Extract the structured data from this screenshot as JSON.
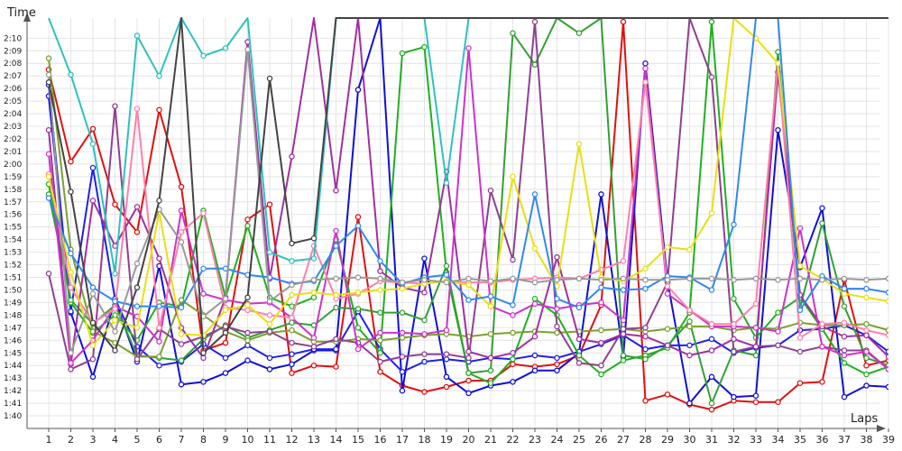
{
  "chart_data": {
    "type": "line",
    "title": "",
    "xlabel": "Laps",
    "ylabel": "Time",
    "x": [
      1,
      2,
      3,
      4,
      5,
      6,
      7,
      8,
      9,
      10,
      11,
      12,
      13,
      14,
      15,
      16,
      17,
      18,
      19,
      20,
      21,
      22,
      23,
      24,
      25,
      26,
      27,
      28,
      29,
      30,
      31,
      32,
      33,
      34,
      35,
      36,
      37,
      38,
      39
    ],
    "xlim": [
      0,
      40
    ],
    "ylim": [
      99,
      131.6
    ],
    "y_ticks": [
      {
        "v": 100,
        "label": "1:40"
      },
      {
        "v": 101,
        "label": "1:41"
      },
      {
        "v": 102,
        "label": "1:42"
      },
      {
        "v": 103,
        "label": "1:43"
      },
      {
        "v": 104,
        "label": "1:44"
      },
      {
        "v": 105,
        "label": "1:45"
      },
      {
        "v": 106,
        "label": "1:46"
      },
      {
        "v": 107,
        "label": "1:47"
      },
      {
        "v": 108,
        "label": "1:48"
      },
      {
        "v": 109,
        "label": "1:49"
      },
      {
        "v": 110,
        "label": "1:50"
      },
      {
        "v": 111,
        "label": "1:51"
      },
      {
        "v": 112,
        "label": "1:52"
      },
      {
        "v": 113,
        "label": "1:53"
      },
      {
        "v": 114,
        "label": "1:54"
      },
      {
        "v": 115,
        "label": "1:55"
      },
      {
        "v": 116,
        "label": "1:56"
      },
      {
        "v": 117,
        "label": "1:57"
      },
      {
        "v": 118,
        "label": "1:58"
      },
      {
        "v": 119,
        "label": "1:59"
      },
      {
        "v": 120,
        "label": "2:00"
      },
      {
        "v": 121,
        "label": "2:01"
      },
      {
        "v": 122,
        "label": "2:02"
      },
      {
        "v": 123,
        "label": "2:03"
      },
      {
        "v": 124,
        "label": "2:04"
      },
      {
        "v": 125,
        "label": "2:05"
      },
      {
        "v": 126,
        "label": "2:06"
      },
      {
        "v": 127,
        "label": "2:07"
      },
      {
        "v": 128,
        "label": "2:08"
      },
      {
        "v": 129,
        "label": "2:09"
      },
      {
        "v": 130,
        "label": "2:10"
      }
    ],
    "grid": true,
    "legend": "none",
    "series": [
      {
        "color": "#e01010",
        "values": [
          127.5,
          120.2,
          122.8,
          116.8,
          114.6,
          124.3,
          118.2,
          105.2,
          105.8,
          115.6,
          116.8,
          103.4,
          104.0,
          103.9,
          115.8,
          103.5,
          102.4,
          101.9,
          102.3,
          102.8,
          102.8,
          104.1,
          103.9,
          104.1,
          104.8,
          108.8,
          131.3,
          101.2,
          101.7,
          100.9,
          100.5,
          101.2,
          101.1,
          101.1,
          102.6,
          102.7,
          110.8,
          104.0,
          104.4
        ]
      },
      {
        "color": "#1010d8",
        "values": [
          125.4,
          108.2,
          103.1,
          109.2,
          104.3,
          111.9,
          102.5,
          102.7,
          103.4,
          104.4,
          103.7,
          104.1,
          105.2,
          105.2,
          125.9,
          131.6,
          102.0,
          112.5,
          103.1,
          101.8,
          102.4,
          102.7,
          103.6,
          103.6,
          105.0,
          117.6,
          104.7,
          128.0,
          110.7,
          101.0,
          103.1,
          101.5,
          101.6,
          122.7,
          111.8,
          116.5,
          101.5,
          102.4,
          102.3
        ]
      },
      {
        "color": "#2020e8",
        "values": [
          126.3,
          108.3,
          119.7,
          109.3,
          105.5,
          104.0,
          104.3,
          105.7,
          104.6,
          105.6,
          104.6,
          104.9,
          105.3,
          105.3,
          108.3,
          105.3,
          103.5,
          104.3,
          104.5,
          104.3,
          104.6,
          104.5,
          104.8,
          104.6,
          105.1,
          105.7,
          106.4,
          105.3,
          105.6,
          105.6,
          106.1,
          105.0,
          105.4,
          105.6,
          106.8,
          106.9,
          107.2,
          106.4,
          105.1
        ]
      },
      {
        "color": "#20b020",
        "values": [
          118.4,
          109.0,
          106.6,
          108.0,
          106.0,
          109.0,
          108.7,
          116.3,
          109.4,
          115.1,
          109.4,
          108.7,
          109.4,
          114.0,
          107.0,
          105.0,
          128.8,
          129.3,
          111.4,
          103.4,
          102.6,
          104.5,
          109.3,
          108.0,
          104.8,
          103.3,
          104.4,
          104.8,
          105.4,
          108.2,
          131.3,
          109.3,
          106.2,
          108.2,
          109.4,
          106.9,
          104.2,
          103.3,
          103.9
        ]
      },
      {
        "color": "#33a033",
        "values": [
          117.6,
          109.2,
          107.3,
          108.8,
          104.8,
          104.6,
          104.4,
          106.1,
          107.2,
          106.2,
          106.8,
          107.4,
          107.2,
          108.6,
          108.5,
          108.2,
          108.2,
          107.6,
          111.9,
          103.4,
          103.6,
          130.4,
          127.9,
          131.6,
          130.4,
          131.6,
          104.8,
          104.5,
          105.6,
          107.5,
          101.0,
          105.2,
          104.8,
          128.9,
          108.6,
          115.3,
          108.7,
          104.6,
          104.0
        ]
      },
      {
        "color": "#7aa030",
        "values": [
          128.4,
          113.2,
          106.7,
          105.8,
          104.7,
          104.7,
          109.2,
          108.0,
          106.7,
          106.0,
          106.6,
          106.8,
          105.9,
          105.9,
          106.1,
          106.0,
          106.2,
          106.4,
          106.5,
          106.3,
          106.5,
          106.6,
          106.7,
          106.6,
          106.7,
          106.8,
          106.9,
          106.7,
          106.9,
          107.1,
          107.1,
          106.8,
          107.0,
          106.9,
          107.4,
          107.2,
          107.2,
          107.3,
          106.8
        ]
      },
      {
        "color": "#904090",
        "values": [
          111.3,
          103.7,
          104.5,
          124.6,
          104.5,
          106.9,
          105.7,
          106.3,
          107.1,
          106.6,
          106.7,
          105.8,
          105.5,
          106.1,
          105.8,
          104.3,
          104.7,
          104.9,
          104.9,
          104.6,
          117.9,
          112.4,
          131.3,
          107.1,
          104.2,
          104.0,
          106.9,
          107.0,
          110.6,
          131.6,
          126.9,
          105.1,
          105.5,
          105.6,
          105.1,
          105.5,
          105.2,
          105.2,
          103.7
        ]
      },
      {
        "color": "#a030a0",
        "values": [
          122.7,
          104.1,
          117.1,
          113.5,
          116.6,
          112.5,
          107.0,
          104.6,
          109.4,
          129.7,
          110.9,
          120.6,
          131.6,
          117.9,
          131.6,
          111.5,
          110.2,
          109.8,
          119.4,
          105.1,
          104.6,
          105.0,
          106.3,
          112.6,
          106.1,
          105.8,
          106.5,
          106.3,
          105.6,
          104.8,
          105.2,
          106.1,
          105.5,
          127.3,
          109.6,
          107.1,
          106.3,
          106.4,
          104.7
        ]
      },
      {
        "color": "#cc33cc",
        "values": [
          120.8,
          104.2,
          106.0,
          108.7,
          107.9,
          105.9,
          116.3,
          109.7,
          109.2,
          108.9,
          109.0,
          107.8,
          106.2,
          114.7,
          105.3,
          106.6,
          106.6,
          106.5,
          106.8,
          129.2,
          108.7,
          108.0,
          108.9,
          108.5,
          108.8,
          109.0,
          107.6,
          127.6,
          109.7,
          108.4,
          107.1,
          107.1,
          107.0,
          106.7,
          114.9,
          105.5,
          104.8,
          105.1,
          103.7
        ]
      },
      {
        "color": "#ff80aa",
        "values": [
          119.2,
          110.2,
          107.4,
          108.5,
          124.4,
          107.0,
          114.6,
          116.1,
          108.6,
          108.4,
          108.0,
          107.8,
          113.5,
          109.3,
          109.7,
          110.7,
          110.6,
          110.5,
          110.7,
          110.6,
          110.6,
          110.8,
          110.9,
          111.0,
          110.9,
          111.6,
          112.3,
          126.5,
          110.3,
          108.4,
          107.3,
          107.3,
          108.9,
          128.0,
          106.2,
          107.3,
          107.4,
          106.8,
          106.4
        ]
      },
      {
        "color": "#e8e010",
        "values": [
          119.0,
          111.4,
          105.6,
          107.6,
          107.0,
          116.2,
          106.5,
          106.4,
          108.4,
          108.8,
          107.3,
          109.6,
          109.8,
          109.6,
          109.8,
          110.0,
          110.1,
          110.5,
          110.7,
          110.4,
          108.7,
          119.0,
          113.3,
          110.3,
          121.6,
          111.0,
          110.7,
          111.7,
          113.4,
          113.2,
          116.1,
          131.6,
          130.0,
          128.0,
          111.9,
          110.9,
          109.7,
          109.4,
          109.1
        ]
      },
      {
        "color": "#3388ee",
        "values": [
          117.3,
          112.9,
          110.2,
          109.1,
          108.7,
          108.7,
          108.6,
          111.7,
          111.7,
          111.2,
          111.0,
          110.5,
          110.7,
          113.5,
          115.1,
          112.3,
          110.5,
          111.0,
          111.2,
          109.2,
          109.5,
          108.8,
          117.6,
          109.3,
          108.6,
          110.2,
          110.0,
          110.1,
          111.1,
          111.0,
          110.0,
          115.2,
          131.6,
          131.6,
          108.4,
          111.1,
          110.1,
          110.1,
          109.8
        ]
      },
      {
        "color": "#30c0c0",
        "values": [
          131.6,
          127.1,
          121.6,
          111.3,
          130.2,
          127.0,
          131.6,
          128.6,
          129.2,
          131.6,
          113.0,
          112.3,
          112.5,
          131.6,
          131.6,
          131.6,
          131.6,
          131.6,
          118.5,
          131.6,
          131.6,
          131.6,
          131.6,
          131.6,
          131.6,
          131.6,
          131.6,
          131.6,
          131.6,
          131.6,
          131.6,
          131.6,
          131.6,
          131.6,
          131.6,
          131.6,
          131.6,
          131.6,
          131.6
        ]
      },
      {
        "color": "#999999",
        "values": [
          127.1,
          105.0,
          109.7,
          106.7,
          112.1,
          116.4,
          113.8,
          107.9,
          109.3,
          129.1,
          109.1,
          110.4,
          110.8,
          110.9,
          111.0,
          110.9,
          110.6,
          110.8,
          110.6,
          110.9,
          110.7,
          110.9,
          110.6,
          110.8,
          110.9,
          110.8,
          110.9,
          110.8,
          110.8,
          110.9,
          110.9,
          110.8,
          110.9,
          110.8,
          110.9,
          110.8,
          110.9,
          110.8,
          110.9
        ]
      },
      {
        "color": "#444444",
        "values": [
          126.5,
          117.8,
          107.4,
          105.2,
          110.2,
          117.1,
          131.6,
          105.0,
          106.6,
          109.4,
          126.8,
          113.7,
          114.1,
          131.6,
          131.6,
          131.6,
          131.6,
          131.6,
          131.6,
          131.6,
          131.6,
          131.6,
          131.6,
          131.6,
          131.6,
          131.6,
          131.6,
          131.6,
          131.6,
          131.6,
          131.6,
          131.6,
          131.6,
          131.6,
          131.6,
          131.6,
          131.6,
          131.6,
          131.6
        ]
      }
    ]
  }
}
